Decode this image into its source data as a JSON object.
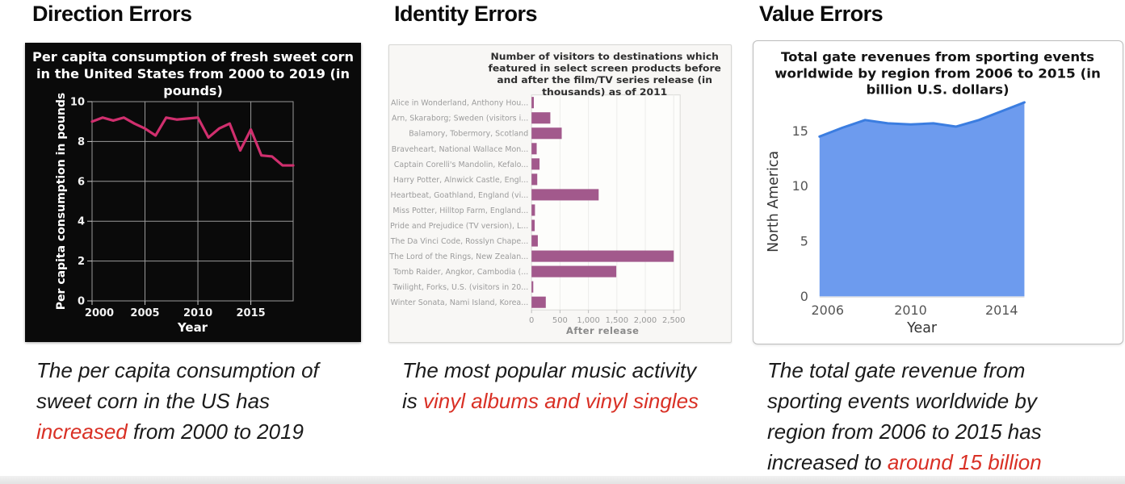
{
  "colors": {
    "highlight_red": "#d93025",
    "line_pink": "#d02f6e",
    "bar_mauve": "#a2598c",
    "area_fill": "#6d9bee",
    "area_stroke": "#3b7de0",
    "dark_chart_bg": "#0a0a0a"
  },
  "columns": [
    {
      "heading": "Direction Errors",
      "caption": [
        {
          "text": "The per capita consumption of sweet corn in the US has ",
          "highlight": false
        },
        {
          "text": "increased",
          "highlight": true
        },
        {
          "text": " from 2000 to 2019",
          "highlight": false
        }
      ]
    },
    {
      "heading": "Identity Errors",
      "caption": [
        {
          "text": "The most popular music activity is ",
          "highlight": false
        },
        {
          "text": "vinyl albums and vinyl singles",
          "highlight": true
        }
      ]
    },
    {
      "heading": "Value Errors",
      "caption": [
        {
          "text": "The total gate revenue from sporting events worldwide by region from 2006 to 2015 has increased to ",
          "highlight": false
        },
        {
          "text": "around 15 billion",
          "highlight": true
        }
      ]
    }
  ],
  "chart_data": [
    {
      "type": "line",
      "title": "Per capita consumption of fresh sweet corn in the United States from 2000 to 2019 (in pounds)",
      "title_lines": [
        "Per capita consumption of fresh sweet corn",
        "in the United States from 2000 to 2019 (in",
        "pounds)"
      ],
      "xlabel": "Year",
      "ylabel": "Per capita consumption in pounds",
      "x": [
        2000,
        2001,
        2002,
        2003,
        2004,
        2005,
        2006,
        2007,
        2008,
        2009,
        2010,
        2011,
        2012,
        2013,
        2014,
        2015,
        2016,
        2017,
        2018,
        2019
      ],
      "values": [
        9.0,
        9.2,
        9.05,
        9.2,
        8.9,
        8.65,
        8.3,
        9.2,
        9.1,
        9.15,
        9.2,
        8.2,
        8.65,
        8.9,
        7.55,
        8.6,
        7.3,
        7.25,
        6.8,
        6.8
      ],
      "ylim": [
        0,
        10
      ],
      "yticks": [
        0,
        2,
        4,
        6,
        8,
        10
      ],
      "xticks": [
        2000,
        2005,
        2010,
        2015
      ],
      "grid": true,
      "theme": "dark"
    },
    {
      "type": "bar",
      "orientation": "horizontal",
      "title": "Number of visitors to destinations which featured in select screen products before and after the film/TV series release (in thousands) as of 2011",
      "title_lines": [
        "Number of visitors to destinations which",
        "featured in select screen products before",
        "and after the film/TV series release (in",
        "thousands) as of 2011"
      ],
      "xlabel": "After release",
      "categories": [
        "Alice in Wonderland, Anthony Hou...",
        "Arn, Skaraborg; Sweden (visitors i...",
        "Balamory, Tobermory, Scotland",
        "Braveheart, National Wallace Mon...",
        "Captain Corelli's Mandolin, Kefalo...",
        "Harry Potter, Alnwick Castle, Engl...",
        "Heartbeat, Goathland, England (vi...",
        "Miss Potter, Hilltop Farm, England...",
        "Pride and Prejudice (TV version), L...",
        "The Da Vinci Code, Rosslyn Chape...",
        "The Lord of the Rings, New Zealan...",
        "Tomb Raider, Angkor, Cambodia (...",
        "Twilight, Forks, U.S. (visitors in 20...",
        "Winter Sonata, Nami Island, Korea..."
      ],
      "values": [
        40,
        330,
        530,
        90,
        140,
        100,
        1180,
        60,
        55,
        110,
        2500,
        1490,
        30,
        250
      ],
      "xticks": [
        0,
        500,
        1000,
        1500,
        2000,
        2500
      ],
      "xtick_labels": [
        "0",
        "500",
        "1,000",
        "1,500",
        "2,000",
        "2,500"
      ],
      "xlim": [
        0,
        2620
      ],
      "grid": true
    },
    {
      "type": "area",
      "title": "Total gate revenues from sporting events worldwide by region from 2006 to 2015 (in billion U.S. dollars)",
      "title_lines": [
        "Total gate revenues from sporting events",
        "worldwide by region from 2006 to 2015 (in",
        "billion U.S. dollars)"
      ],
      "xlabel": "Year",
      "ylabel": "North America",
      "x": [
        2006,
        2007,
        2008,
        2009,
        2010,
        2011,
        2012,
        2013,
        2014,
        2015
      ],
      "values": [
        14.5,
        15.3,
        16.0,
        15.7,
        15.6,
        15.7,
        15.4,
        16.0,
        16.8,
        17.6
      ],
      "ylim": [
        0,
        18.5
      ],
      "yticks": [
        0,
        5,
        10,
        15
      ],
      "xticks": [
        2006,
        2010,
        2014
      ],
      "grid": false
    }
  ]
}
